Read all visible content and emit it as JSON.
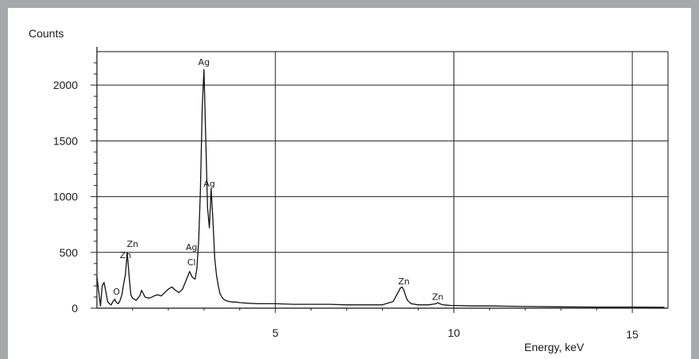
{
  "colors": {
    "background_border": "#a6a8ab",
    "plot_line": "#111111",
    "grid": "#222222"
  },
  "chart_data": {
    "type": "line",
    "title": "",
    "xlabel": "Energy, keV",
    "ylabel": "Counts",
    "xlim": [
      0,
      16
    ],
    "ylim": [
      0,
      2300
    ],
    "xticks": [
      5,
      10,
      15
    ],
    "yticks": [
      0,
      500,
      1000,
      1500,
      2000
    ],
    "grid": true,
    "series": [
      {
        "x": [
          0.0,
          0.1,
          0.15,
          0.2,
          0.25,
          0.3,
          0.35,
          0.4,
          0.45,
          0.5,
          0.55,
          0.6,
          0.65,
          0.7,
          0.75,
          0.8,
          0.85,
          0.9,
          0.95,
          1.0,
          1.05,
          1.1,
          1.15,
          1.2,
          1.25,
          1.3,
          1.35,
          1.4,
          1.45,
          1.5,
          1.55,
          1.6,
          1.7,
          1.8,
          1.9,
          2.0,
          2.1,
          2.2,
          2.3,
          2.4,
          2.5,
          2.6,
          2.65,
          2.7,
          2.75,
          2.8,
          2.85,
          2.9,
          2.95,
          3.0,
          3.05,
          3.1,
          3.15,
          3.2,
          3.25,
          3.3,
          3.35,
          3.4,
          3.45,
          3.5,
          3.55,
          3.6,
          3.7,
          3.8,
          3.9,
          4.0,
          4.2,
          4.5,
          5.0,
          5.5,
          6.0,
          6.5,
          7.0,
          7.5,
          8.0,
          8.3,
          8.5,
          8.55,
          8.6,
          8.65,
          8.7,
          8.8,
          9.0,
          9.3,
          9.5,
          9.55,
          9.6,
          9.7,
          9.9,
          10.5,
          11.0,
          12.0,
          13.0,
          14.0,
          15.0,
          15.9
        ],
        "y": [
          280,
          20,
          200,
          230,
          150,
          60,
          40,
          30,
          60,
          80,
          50,
          40,
          70,
          120,
          220,
          300,
          500,
          300,
          120,
          90,
          80,
          70,
          90,
          110,
          160,
          130,
          100,
          95,
          90,
          95,
          100,
          110,
          120,
          110,
          140,
          170,
          190,
          160,
          140,
          170,
          250,
          330,
          290,
          270,
          260,
          350,
          600,
          1050,
          1800,
          2140,
          1500,
          900,
          720,
          1070,
          800,
          450,
          300,
          200,
          130,
          100,
          80,
          70,
          60,
          55,
          55,
          50,
          45,
          40,
          40,
          35,
          35,
          35,
          30,
          30,
          30,
          60,
          180,
          190,
          160,
          110,
          70,
          40,
          30,
          30,
          40,
          50,
          40,
          30,
          25,
          20,
          20,
          15,
          12,
          10,
          10,
          8
        ]
      }
    ],
    "annotations": [
      {
        "text": "Ag",
        "x": 3.0,
        "y": 2180
      },
      {
        "text": "Ag",
        "x": 3.15,
        "y": 1090
      },
      {
        "text": "Zn",
        "x": 1.0,
        "y": 550
      },
      {
        "text": "Zn",
        "x": 0.8,
        "y": 450
      },
      {
        "text": "Ag",
        "x": 2.65,
        "y": 520
      },
      {
        "text": "Cl",
        "x": 2.65,
        "y": 385
      },
      {
        "text": "O",
        "x": 0.55,
        "y": 120
      },
      {
        "text": "Zn",
        "x": 8.6,
        "y": 215
      },
      {
        "text": "Zn",
        "x": 9.55,
        "y": 75
      }
    ]
  }
}
